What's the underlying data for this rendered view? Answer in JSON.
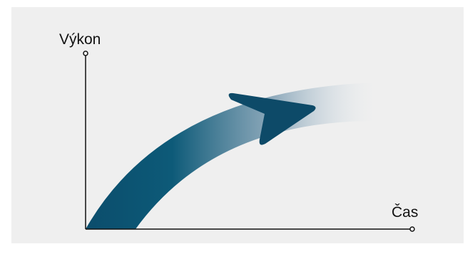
{
  "axes": {
    "y_label": "Výkon",
    "x_label": "Čas"
  }
}
